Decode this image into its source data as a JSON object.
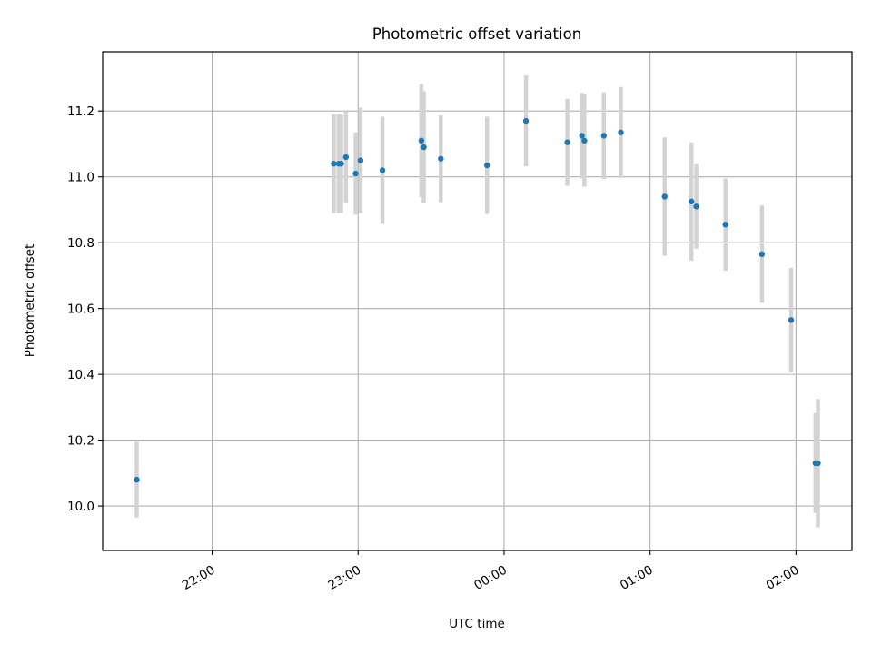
{
  "chart_data": {
    "type": "scatter",
    "title": "Photometric offset variation",
    "xlabel": "UTC time",
    "ylabel": "Photometric offset",
    "grid": true,
    "x_unit": "UTC time of day; values after midnight continue past 24:00",
    "xlim": [
      "21:15",
      "26:23"
    ],
    "ylim": [
      9.865,
      11.38
    ],
    "x_ticks": [
      {
        "time": "22:00",
        "label": "22:00"
      },
      {
        "time": "23:00",
        "label": "23:00"
      },
      {
        "time": "24:00",
        "label": "00:00"
      },
      {
        "time": "25:00",
        "label": "01:00"
      },
      {
        "time": "26:00",
        "label": "02:00"
      }
    ],
    "y_ticks": [
      10.0,
      10.2,
      10.4,
      10.6,
      10.8,
      11.0,
      11.2
    ],
    "y_tick_labels": [
      "10.0",
      "10.2",
      "10.4",
      "10.6",
      "10.8",
      "11.0",
      "11.2"
    ],
    "point_color": "#1f77b4",
    "errorbar_color": "#d3d3d3",
    "points": [
      {
        "t": "21:29",
        "y": 10.08,
        "err": 0.115
      },
      {
        "t": "22:50",
        "y": 11.04,
        "err": 0.15
      },
      {
        "t": "22:52",
        "y": 11.04,
        "err": 0.15
      },
      {
        "t": "22:53",
        "y": 11.04,
        "err": 0.15
      },
      {
        "t": "22:55",
        "y": 11.06,
        "err": 0.14
      },
      {
        "t": "22:59",
        "y": 11.01,
        "err": 0.125
      },
      {
        "t": "23:01",
        "y": 11.05,
        "err": 0.16
      },
      {
        "t": "23:10",
        "y": 11.02,
        "err": 0.163
      },
      {
        "t": "23:26",
        "y": 11.11,
        "err": 0.172
      },
      {
        "t": "23:27",
        "y": 11.09,
        "err": 0.17
      },
      {
        "t": "23:34",
        "y": 11.055,
        "err": 0.132
      },
      {
        "t": "23:53",
        "y": 11.035,
        "err": 0.148
      },
      {
        "t": "24:09",
        "y": 11.17,
        "err": 0.138
      },
      {
        "t": "24:26",
        "y": 11.105,
        "err": 0.132
      },
      {
        "t": "24:32",
        "y": 11.125,
        "err": 0.13
      },
      {
        "t": "24:33",
        "y": 11.11,
        "err": 0.14
      },
      {
        "t": "24:41",
        "y": 11.125,
        "err": 0.132
      },
      {
        "t": "24:48",
        "y": 11.135,
        "err": 0.138
      },
      {
        "t": "25:06",
        "y": 10.94,
        "err": 0.18
      },
      {
        "t": "25:17",
        "y": 10.925,
        "err": 0.18
      },
      {
        "t": "25:19",
        "y": 10.91,
        "err": 0.128
      },
      {
        "t": "25:31",
        "y": 10.855,
        "err": 0.14
      },
      {
        "t": "25:46",
        "y": 10.765,
        "err": 0.148
      },
      {
        "t": "25:58",
        "y": 10.565,
        "err": 0.158
      },
      {
        "t": "26:08",
        "y": 10.13,
        "err": 0.152
      },
      {
        "t": "26:09",
        "y": 10.13,
        "err": 0.195
      }
    ]
  }
}
